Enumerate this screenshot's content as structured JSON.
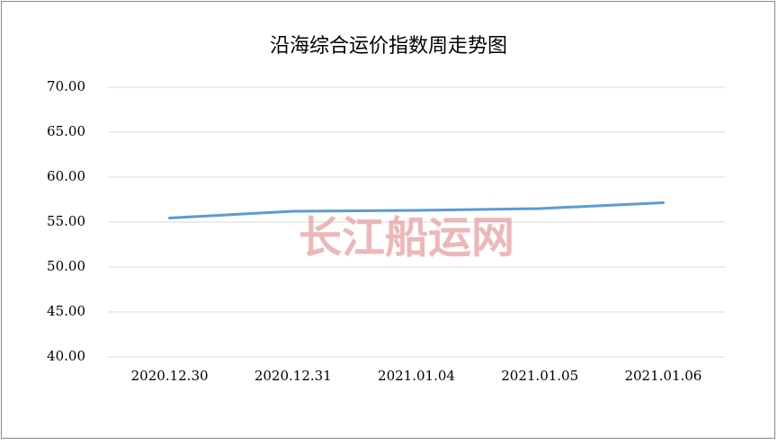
{
  "chart_data": {
    "type": "line",
    "title": "沿海综合运价指数周走势图",
    "watermark": "长江船运网",
    "categories": [
      "2020.12.30",
      "2020.12.31",
      "2021.01.04",
      "2021.01.05",
      "2021.01.06"
    ],
    "series": [
      {
        "name": "沿海综合运价指数",
        "color": "#5b9bd5",
        "values": [
          55.45,
          56.2,
          56.3,
          56.5,
          57.15
        ]
      }
    ],
    "ylim": [
      40,
      70
    ],
    "yticks": [
      {
        "value": 40,
        "label": "40.00"
      },
      {
        "value": 45,
        "label": "45.00"
      },
      {
        "value": 50,
        "label": "50.00"
      },
      {
        "value": 55,
        "label": "55.00"
      },
      {
        "value": 60,
        "label": "60.00"
      },
      {
        "value": 65,
        "label": "65.00"
      },
      {
        "value": 70,
        "label": "70.00"
      }
    ],
    "grid": true
  }
}
